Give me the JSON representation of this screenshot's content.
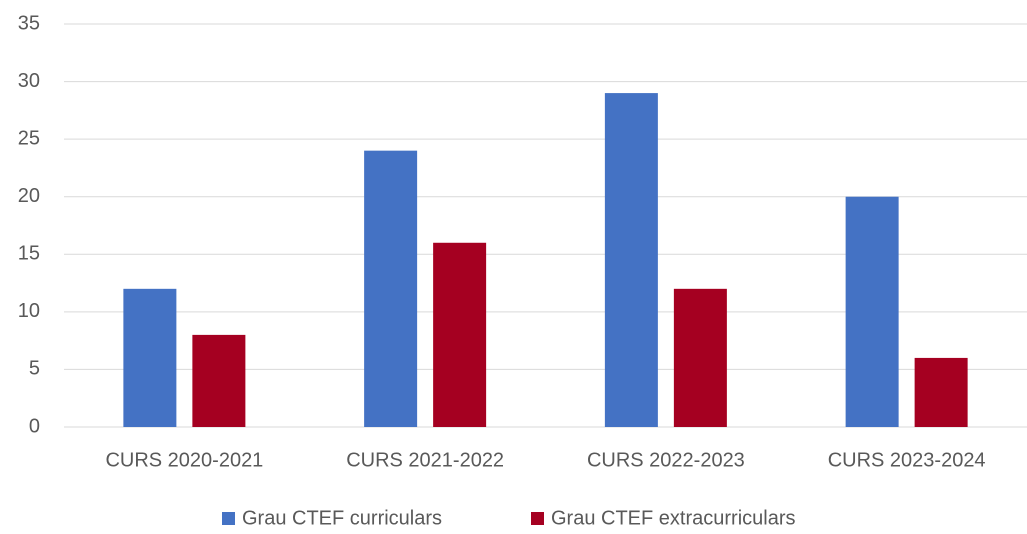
{
  "chart_data": {
    "type": "bar",
    "categories": [
      "CURS 2020-2021",
      "CURS 2021-2022",
      "CURS 2022-2023",
      "CURS 2023-2024"
    ],
    "series": [
      {
        "name": "Grau CTEF curriculars",
        "color": "#4472c4",
        "values": [
          12,
          24,
          29,
          20
        ]
      },
      {
        "name": "Grau CTEF extracurriculars",
        "color": "#a50021",
        "values": [
          8,
          16,
          12,
          6
        ]
      }
    ],
    "ylim": [
      0,
      35
    ],
    "yticks": [
      0,
      5,
      10,
      15,
      20,
      25,
      30,
      35
    ],
    "grid": true,
    "legend": "bottom"
  }
}
